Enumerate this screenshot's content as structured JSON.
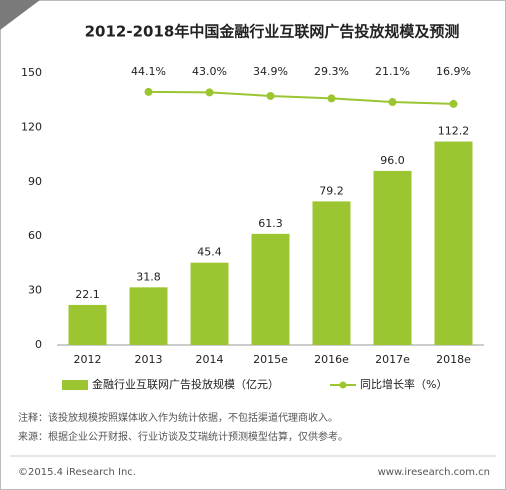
{
  "chart_data": {
    "type": "bar-line",
    "title": "2012-2018年中国金融行业互联网广告投放规模及预测",
    "categories": [
      "2012",
      "2013",
      "2014",
      "2015e",
      "2016e",
      "2017e",
      "2018e"
    ],
    "series": [
      {
        "name": "金融行业互联网广告投放规模（亿元）",
        "type": "bar",
        "color": "#9cc532",
        "values": [
          22.1,
          31.8,
          45.4,
          61.3,
          79.2,
          96.0,
          112.2
        ],
        "value_labels": [
          "22.1",
          "31.8",
          "45.4",
          "61.3",
          "79.2",
          "96.0",
          "112.2"
        ]
      },
      {
        "name": "同比增长率（%）",
        "type": "line",
        "axis": "y2",
        "color": "#9cc532",
        "values": [
          null,
          44.1,
          43.0,
          34.9,
          29.3,
          21.1,
          16.9
        ],
        "value_labels": [
          null,
          "44.1%",
          "43.0%",
          "34.9%",
          "29.3%",
          "21.1%",
          "16.9%"
        ]
      }
    ],
    "ylim": [
      0,
      150
    ],
    "yticks": [
      0,
      30,
      60,
      90,
      120,
      150
    ],
    "y2lim": [
      -530,
      87
    ],
    "grid": false,
    "legend": "bottom",
    "notes": [
      "注释：该投放规模按照媒体收入作为统计依据，不包括渠道代理商收入。",
      "来源：根据企业公开财报、行业访谈及艾瑞统计预测模型估算，仅供参考。"
    ],
    "footer": {
      "left": "©2015.4 iResearch Inc.",
      "right": "www.iresearch.com.cn"
    }
  }
}
